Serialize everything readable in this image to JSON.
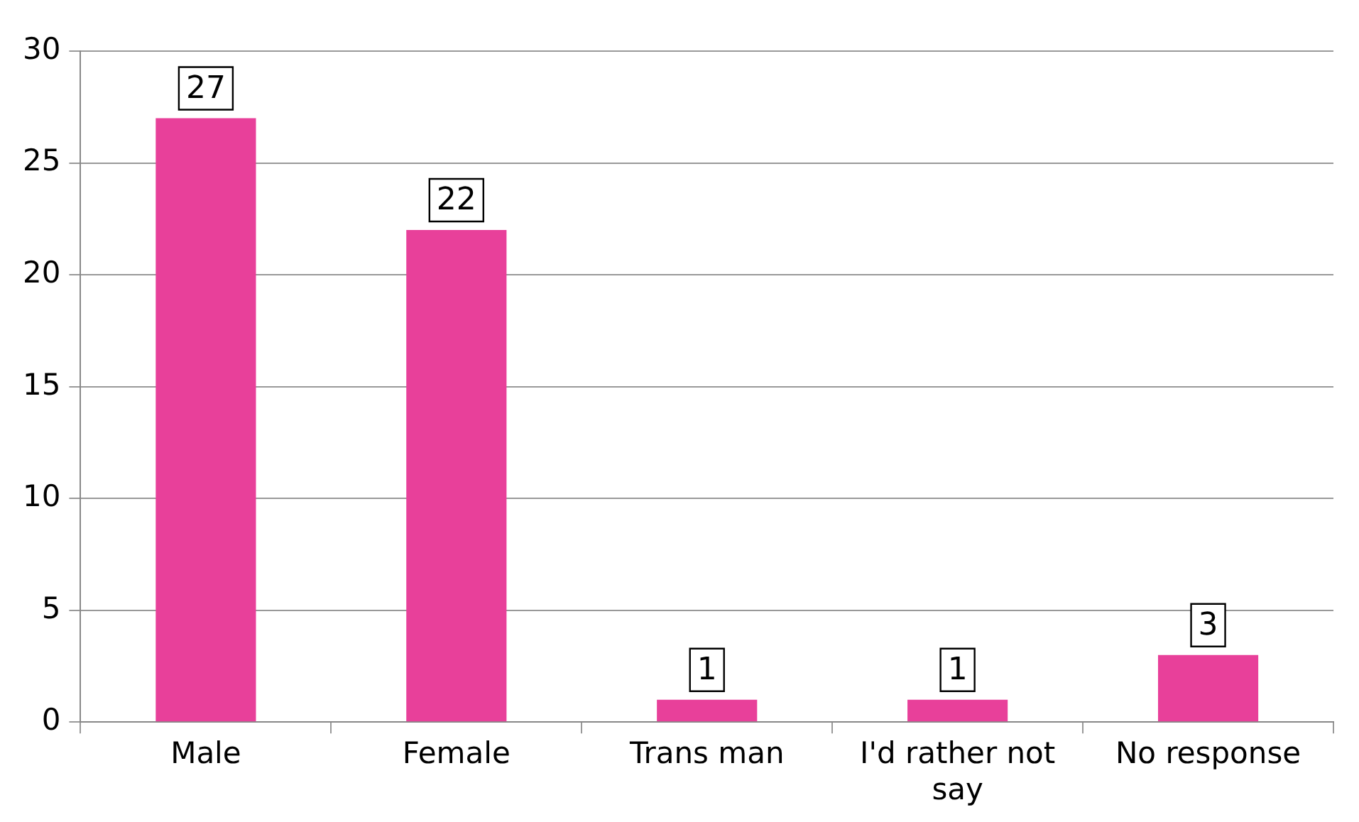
{
  "chart_data": {
    "type": "bar",
    "categories": [
      "Male",
      "Female",
      "Trans man",
      "I'd rather not say",
      "No response"
    ],
    "values": [
      27,
      22,
      1,
      1,
      3
    ],
    "color": "#e8409a",
    "ylim": [
      0,
      30
    ],
    "yticks": [
      0,
      5,
      10,
      15,
      20,
      25,
      30
    ],
    "grid": "y",
    "legend": false,
    "data_labels": true
  }
}
